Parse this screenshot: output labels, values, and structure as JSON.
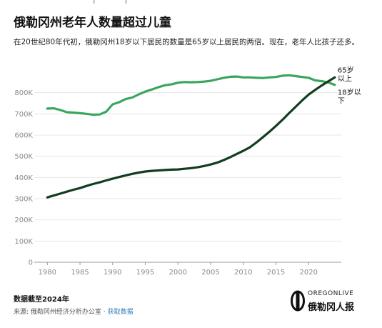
{
  "header": {
    "title": "俄勒冈州老年人数量超过儿童",
    "subtitle": "在20世纪80年代初，俄勒冈州18岁以下居民的数量是65岁以上居民的两倍。现在，老年人比孩子还多。"
  },
  "footer": {
    "note": "数据截至2024年",
    "source_prefix": "来源:",
    "source_org": "俄勒冈州经济分析办公室",
    "source_sep": "·",
    "source_link": "获取数据"
  },
  "brand": {
    "top": "OREGONLIVE",
    "name": "俄勒冈人报"
  },
  "chart_data": {
    "type": "line",
    "title": "俄勒冈州老年人数量超过儿童",
    "xlabel": "",
    "ylabel": "",
    "xlim": [
      1978,
      2025
    ],
    "ylim": [
      0,
      900000
    ],
    "x_ticks": [
      1980,
      1985,
      1990,
      1995,
      2000,
      2005,
      2010,
      2015,
      2020
    ],
    "x_tick_labels": [
      "1980",
      "1985",
      "1990",
      "1995",
      "2000",
      "2005",
      "2010",
      "2015",
      "2020"
    ],
    "y_ticks": [
      0,
      100000,
      200000,
      300000,
      400000,
      500000,
      600000,
      700000,
      800000
    ],
    "y_tick_labels": [
      "0",
      "100K",
      "200K",
      "300K",
      "400K",
      "500K",
      "600K",
      "700K",
      "800K"
    ],
    "grid": true,
    "x": [
      1980,
      1981,
      1982,
      1983,
      1984,
      1985,
      1986,
      1987,
      1988,
      1989,
      1990,
      1991,
      1992,
      1993,
      1994,
      1995,
      1996,
      1997,
      1998,
      1999,
      2000,
      2001,
      2002,
      2003,
      2004,
      2005,
      2006,
      2007,
      2008,
      2009,
      2010,
      2011,
      2012,
      2013,
      2014,
      2015,
      2016,
      2017,
      2018,
      2019,
      2020,
      2021,
      2022,
      2023,
      2024
    ],
    "series": [
      {
        "name": "18岁以下",
        "color": "#3aa65d",
        "values": [
          725000,
          726000,
          718000,
          708000,
          706000,
          703000,
          700000,
          696000,
          697000,
          710000,
          745000,
          755000,
          770000,
          777000,
          792000,
          805000,
          815000,
          826000,
          835000,
          839000,
          847000,
          850000,
          849000,
          850000,
          852000,
          856000,
          863000,
          870000,
          875000,
          876000,
          872000,
          872000,
          870000,
          869000,
          872000,
          874000,
          880000,
          882000,
          878000,
          874000,
          870000,
          858000,
          854000,
          848000,
          837000
        ]
      },
      {
        "name": "65岁以上",
        "color": "#123d1f",
        "values": [
          306000,
          315000,
          324000,
          333000,
          342000,
          350000,
          360000,
          369000,
          377000,
          386000,
          394000,
          402000,
          410000,
          417000,
          423000,
          428000,
          431000,
          433000,
          435000,
          437000,
          438000,
          441000,
          444000,
          448000,
          454000,
          461000,
          470000,
          482000,
          496000,
          511000,
          526000,
          542000,
          565000,
          590000,
          616000,
          643000,
          672000,
          703000,
          733000,
          763000,
          791000,
          813000,
          834000,
          853000,
          872000
        ]
      }
    ],
    "series_labels": [
      {
        "series": "65岁以上",
        "lines": [
          "65岁",
          "以上"
        ]
      },
      {
        "series": "18岁以下",
        "lines": [
          "18岁以",
          "下"
        ]
      }
    ]
  }
}
